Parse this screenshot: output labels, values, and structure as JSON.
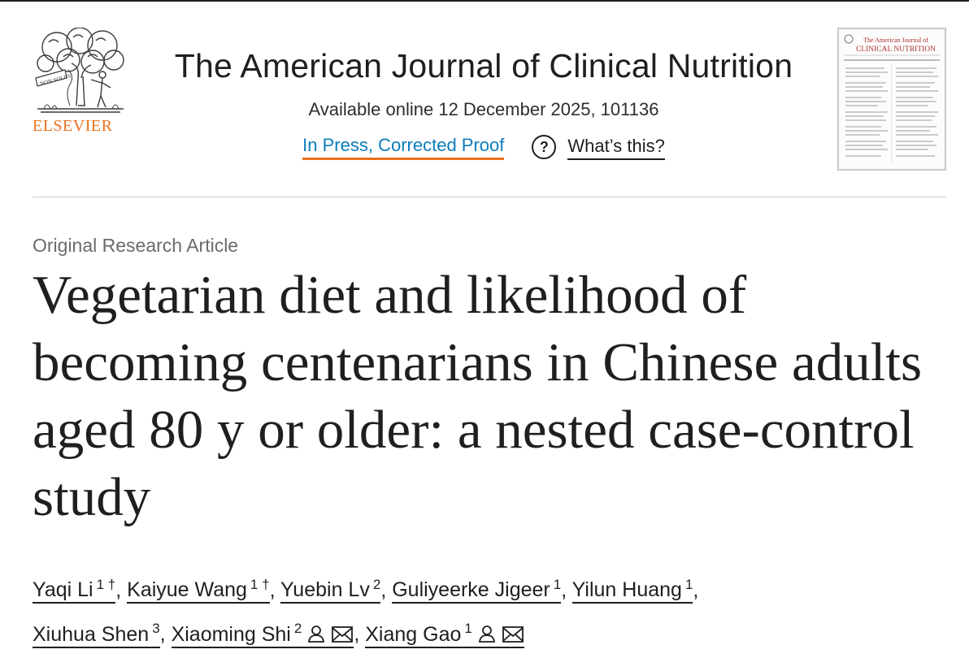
{
  "publisher": {
    "name": "ELSEVIER",
    "logo_motto": "NON SOLUS",
    "icon": "elsevier-tree-logo"
  },
  "journal": {
    "title": "The American Journal of Clinical Nutrition",
    "available_online": "Available online 12 December 2025, 101136",
    "status_link": "In Press, Corrected Proof",
    "help_icon": "question-circle-icon",
    "help_label": "What’s this?"
  },
  "cover": {
    "title_line1": "The American Journal of",
    "title_line2": "CLINICAL NUTRITION"
  },
  "article": {
    "type": "Original Research Article",
    "title": "Vegetarian diet and likelihood of becoming centenarians in Chinese adults aged 80 y or older: a nested case-control study"
  },
  "authors": [
    {
      "name": "Yaqi Li",
      "sup": "1 †",
      "corresponding": false,
      "email": false
    },
    {
      "name": "Kaiyue Wang",
      "sup": "1 †",
      "corresponding": false,
      "email": false
    },
    {
      "name": "Yuebin Lv",
      "sup": "2",
      "corresponding": false,
      "email": false
    },
    {
      "name": "Guliyeerke Jigeer",
      "sup": "1",
      "corresponding": false,
      "email": false
    },
    {
      "name": "Yilun Huang",
      "sup": "1",
      "corresponding": false,
      "email": false
    },
    {
      "name": "Xiuhua Shen",
      "sup": "3",
      "corresponding": false,
      "email": false
    },
    {
      "name": "Xiaoming Shi",
      "sup": "2",
      "corresponding": true,
      "email": true
    },
    {
      "name": "Xiang Gao",
      "sup": "1",
      "corresponding": true,
      "email": true
    }
  ],
  "colors": {
    "accent_orange": "#e9711c",
    "link_blue": "#0c7dbb",
    "text": "#1f1f1f",
    "muted": "#6b6b6b"
  }
}
